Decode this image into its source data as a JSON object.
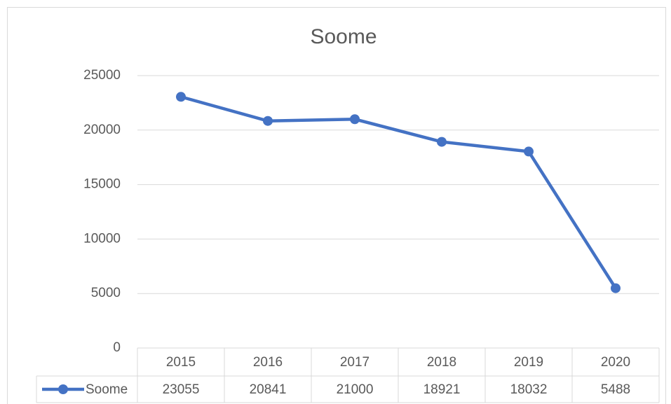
{
  "chart_data": {
    "type": "line",
    "title": "Soome",
    "categories": [
      "2015",
      "2016",
      "2017",
      "2018",
      "2019",
      "2020"
    ],
    "series": [
      {
        "name": "Soome",
        "color": "#4472c4",
        "values": [
          23055,
          20841,
          21000,
          18921,
          18032,
          5488
        ]
      }
    ],
    "ylim": [
      0,
      25000
    ],
    "yticks": [
      0,
      5000,
      10000,
      15000,
      20000,
      25000
    ],
    "grid": true,
    "legend": "bottom"
  }
}
